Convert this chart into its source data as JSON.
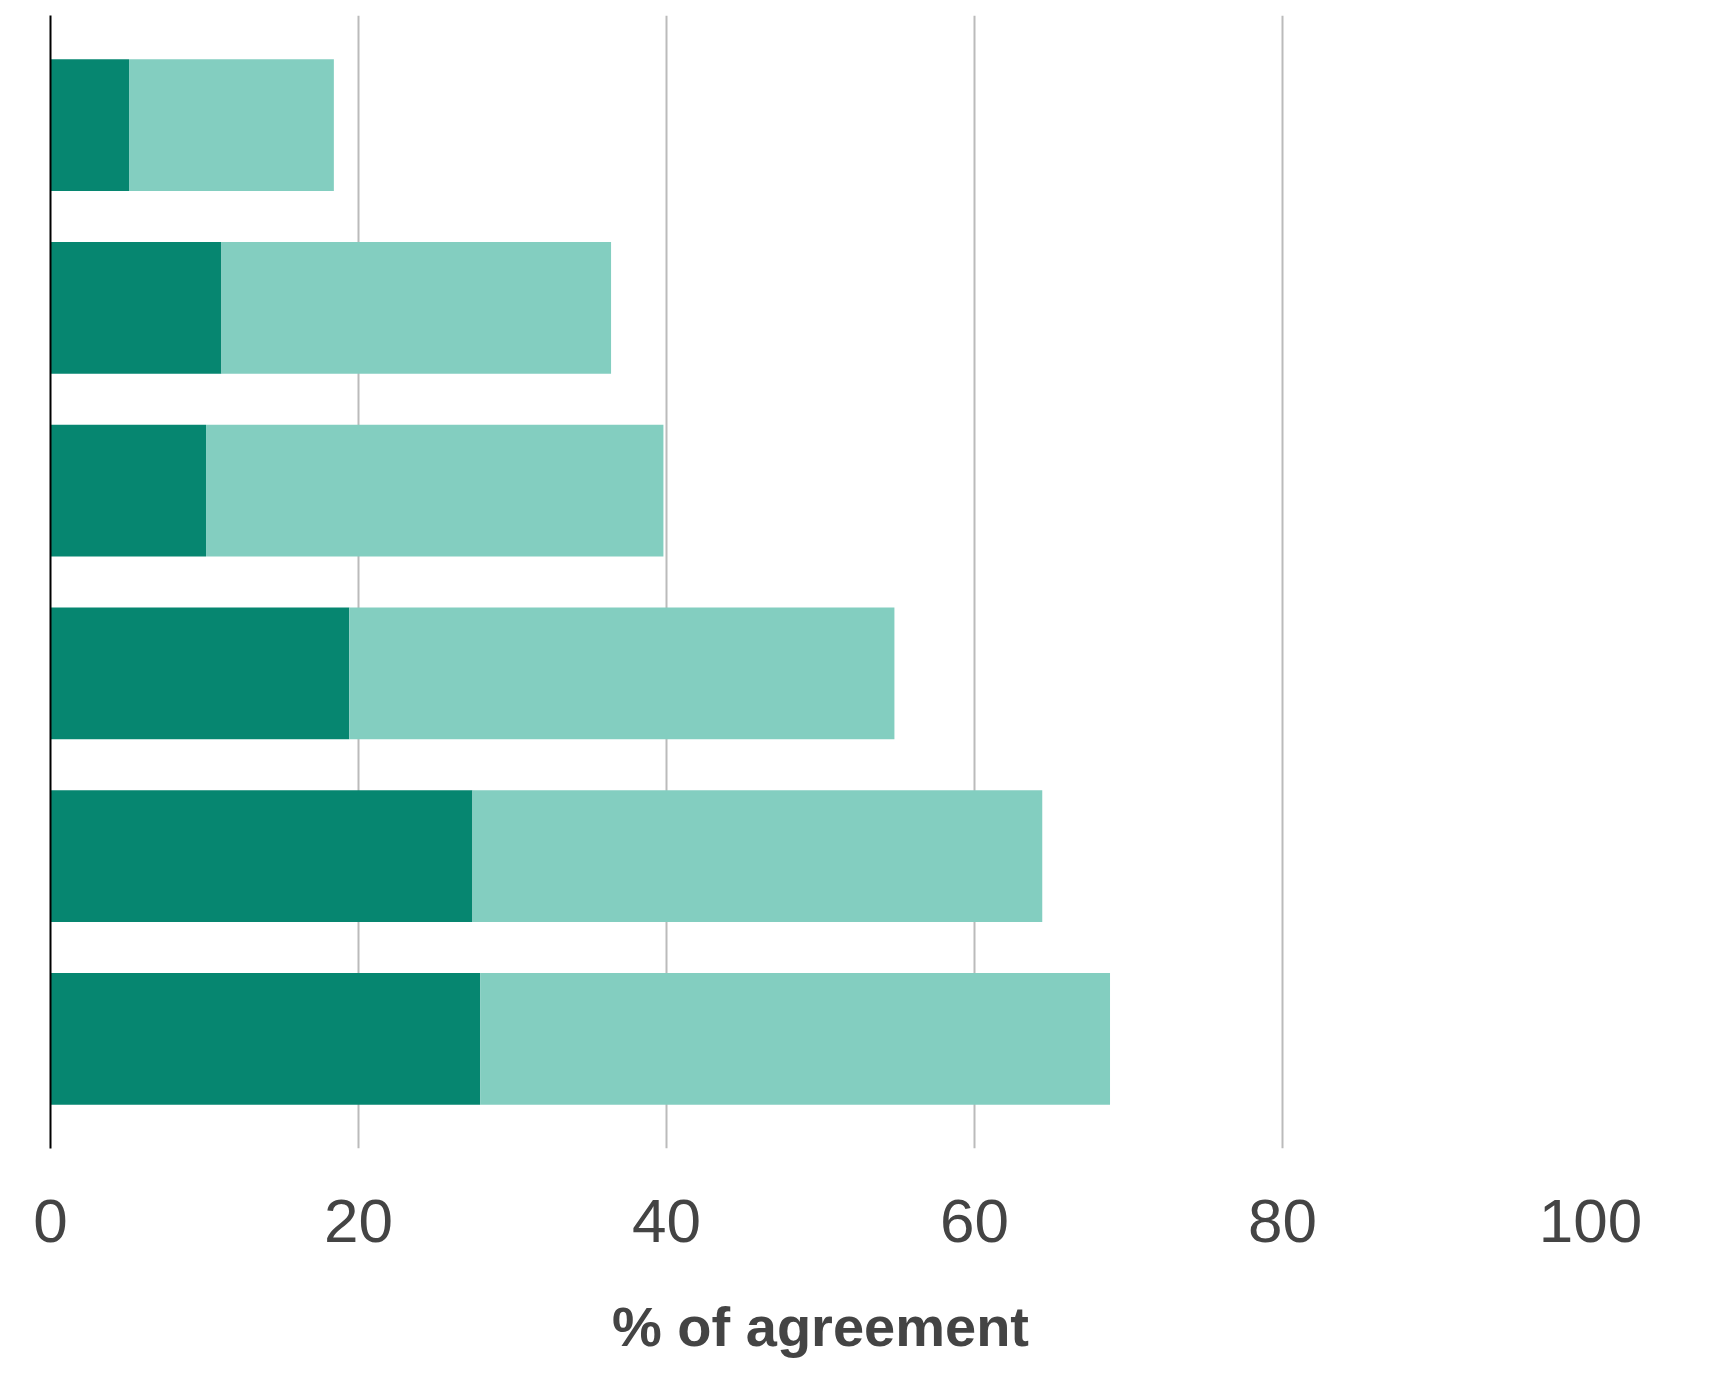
{
  "chart_data": {
    "type": "bar",
    "orientation": "horizontal",
    "stacked": true,
    "xlabel": "% of agreement",
    "categories": [
      null,
      null,
      null,
      null,
      null,
      null
    ],
    "series": [
      {
        "color": "#068670",
        "values": [
          5.1,
          11.1,
          10.1,
          19.4,
          27.4,
          27.9
        ]
      },
      {
        "color": "#83cec0",
        "values": [
          13.3,
          25.3,
          29.7,
          35.4,
          37.0,
          40.9
        ]
      }
    ],
    "xlim": [
      0,
      100
    ],
    "xticks": [
      0,
      20,
      40,
      60,
      80,
      100
    ],
    "grid": "x",
    "tick_labels": "x"
  }
}
